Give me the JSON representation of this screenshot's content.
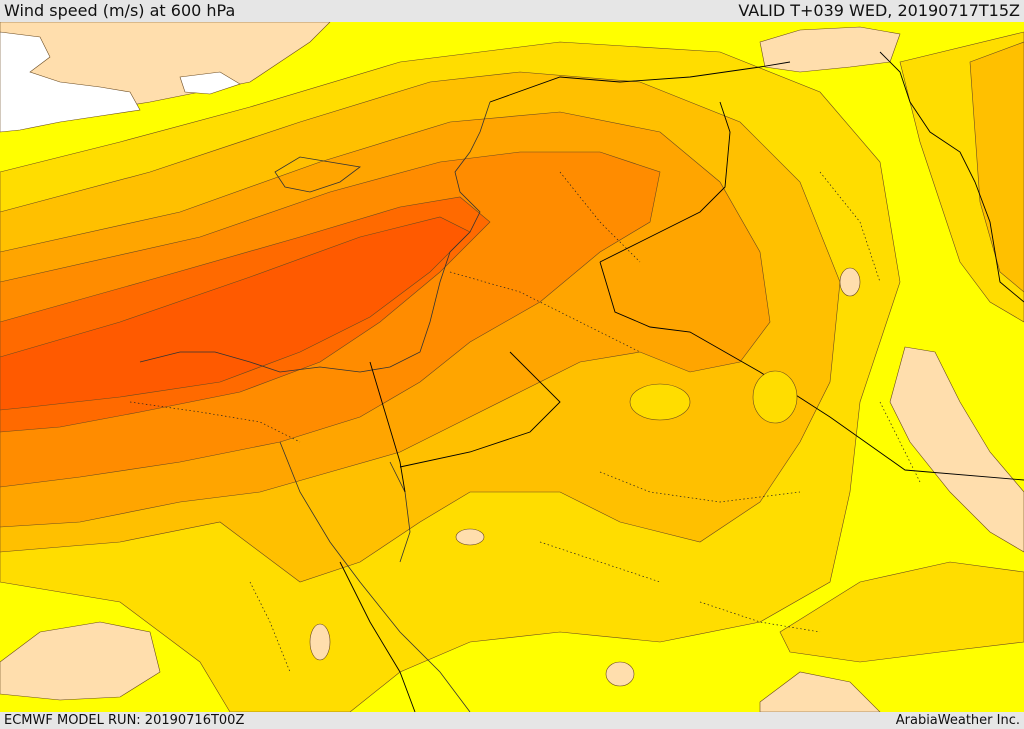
{
  "header": {
    "title": "Wind speed (m/s) at 600 hPa",
    "valid": "VALID T+039 WED, 20190717T15Z"
  },
  "footer": {
    "model_run": "ECMWF MODEL RUN: 20190716T00Z",
    "credit": "ArabiaWeather Inc."
  },
  "map": {
    "palette": {
      "missing": "#ffffff",
      "lightest": "#ffdead",
      "yellow": "#ffff00",
      "gold": "#ffdd00",
      "amber": "#ffc000",
      "orange": "#ffa500",
      "dark_orange": "#ff8c00",
      "red_orange": "#ff6a00",
      "deep_orange": "#ff5a00",
      "contour": "#6a4a20",
      "border": "#000000"
    }
  }
}
